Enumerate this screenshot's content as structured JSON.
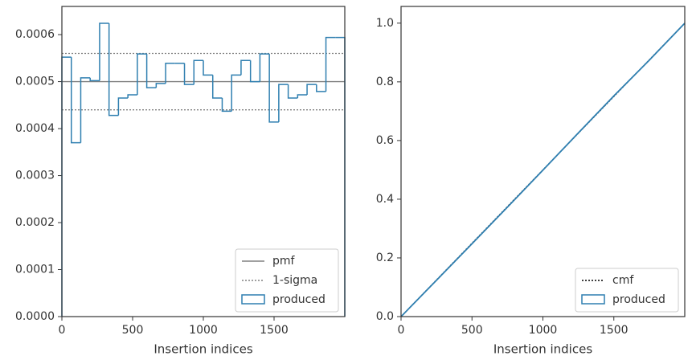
{
  "chart_data": [
    {
      "type": "histogram",
      "xlabel": "Insertion indices",
      "bins": [
        0,
        66.67,
        133.33,
        200,
        266.67,
        333.33,
        400,
        466.67,
        533.33,
        600,
        666.67,
        733.33,
        800,
        866.67,
        933.33,
        1000,
        1066.67,
        1133.33,
        1200,
        1266.67,
        1333.33,
        1400,
        1466.67,
        1533.33,
        1600,
        1666.67,
        1733.33,
        1800,
        1866.67,
        1933.33,
        2000
      ],
      "series": [
        {
          "name": "produced",
          "color": "#2f7fb0",
          "values": [
            0.000552,
            0.00037,
            0.000508,
            0.000502,
            0.000624,
            0.000428,
            0.000465,
            0.000472,
            0.000559,
            0.000487,
            0.000496,
            0.000539,
            0.000539,
            0.000494,
            0.000545,
            0.000514,
            0.000465,
            0.000437,
            0.000514,
            0.000545,
            0.0005,
            0.000559,
            0.000414,
            0.000494,
            0.000465,
            0.000472,
            0.000494,
            0.000479,
            0.000594,
            0.000594
          ]
        }
      ],
      "reference_lines": [
        {
          "name": "pmf",
          "color": "#808080",
          "style": "solid",
          "values": [
            0.0005
          ]
        },
        {
          "name": "1-sigma",
          "color": "#808080",
          "style": "dotted",
          "values": [
            0.00044,
            0.00056
          ]
        }
      ],
      "xlim": [
        0,
        2000
      ],
      "xticks": [
        0,
        500,
        1000,
        1500
      ],
      "ylim": [
        0,
        0.00066
      ],
      "yticks": [
        {
          "value": 0,
          "label": "0.0000"
        },
        {
          "value": 0.0001,
          "label": "0.0001"
        },
        {
          "value": 0.0002,
          "label": "0.0002"
        },
        {
          "value": 0.0003,
          "label": "0.0003"
        },
        {
          "value": 0.0004,
          "label": "0.0004"
        },
        {
          "value": 0.0005,
          "label": "0.0005"
        },
        {
          "value": 0.0006,
          "label": "0.0006"
        }
      ],
      "legend": "lower right"
    },
    {
      "type": "line",
      "xlabel": "Insertion indices",
      "x": [
        0,
        250,
        500,
        750,
        1000,
        1250,
        1500,
        1750,
        2000
      ],
      "series": [
        {
          "name": "cmf",
          "color": "#000000",
          "style": "dotted",
          "values": [
            0,
            0.125,
            0.25,
            0.375,
            0.5,
            0.625,
            0.75,
            0.875,
            1.0
          ]
        },
        {
          "name": "produced",
          "color": "#2f7fb0",
          "style": "solid",
          "values": [
            0,
            0.124,
            0.248,
            0.373,
            0.499,
            0.626,
            0.752,
            0.874,
            1.0
          ]
        }
      ],
      "xlim": [
        0,
        2000
      ],
      "xticks": [
        0,
        500,
        1000,
        1500
      ],
      "ylim": [
        0,
        1.057
      ],
      "yticks": [
        {
          "value": 0,
          "label": "0.0"
        },
        {
          "value": 0.2,
          "label": "0.2"
        },
        {
          "value": 0.4,
          "label": "0.4"
        },
        {
          "value": 0.6,
          "label": "0.6"
        },
        {
          "value": 0.8,
          "label": "0.8"
        },
        {
          "value": 1.0,
          "label": "1.0"
        }
      ],
      "legend": "lower right"
    }
  ]
}
